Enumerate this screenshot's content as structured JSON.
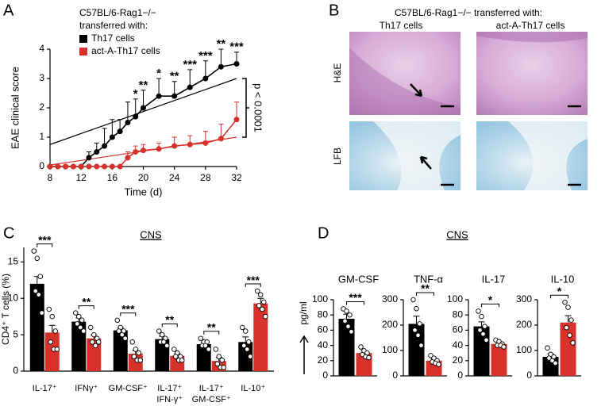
{
  "chart_data": [
    {
      "type": "line",
      "panel": "A",
      "legend_title": [
        "C57BL/6-Rag1−/−",
        "transferred with:"
      ],
      "xlabel": "Time (d)",
      "ylabel": "EAE clinical score",
      "x": [
        8,
        9,
        10,
        11,
        12,
        13,
        14,
        15,
        16,
        17,
        18,
        19,
        20,
        22,
        24,
        26,
        28,
        30,
        32
      ],
      "series": [
        {
          "name": "Th17 cells",
          "color": "#000000",
          "values": [
            0,
            0,
            0,
            0,
            0,
            0.3,
            0.5,
            0.7,
            1.0,
            1.2,
            1.5,
            1.7,
            2.0,
            2.4,
            2.4,
            2.7,
            3.0,
            3.4,
            3.5
          ],
          "errors": [
            0,
            0,
            0,
            0,
            0,
            0.2,
            0.3,
            0.6,
            0.6,
            0.4,
            0.7,
            0.6,
            0.6,
            0.6,
            0.5,
            0.6,
            0.6,
            0.6,
            0.4
          ],
          "fit": [
            0.75,
            3.0
          ]
        },
        {
          "name": "act-A-Th17 cells",
          "color": "#d6312b",
          "values": [
            0,
            0,
            0,
            0,
            0,
            0,
            0,
            0,
            0,
            0,
            0.3,
            0.5,
            0.55,
            0.6,
            0.7,
            0.75,
            0.8,
            0.95,
            1.6
          ],
          "errors": [
            0,
            0,
            0,
            0,
            0,
            0,
            0,
            0,
            0,
            0,
            0.2,
            0.2,
            0.2,
            0.2,
            0.3,
            0.3,
            0.4,
            0.5,
            0.6
          ],
          "fit": [
            0.05,
            1.0
          ]
        }
      ],
      "annotations": [
        {
          "x": 19,
          "text": "*"
        },
        {
          "x": 20,
          "text": "**"
        },
        {
          "x": 22,
          "text": "*"
        },
        {
          "x": 24,
          "text": "**"
        },
        {
          "x": 26,
          "text": "***"
        },
        {
          "x": 28,
          "text": "***"
        },
        {
          "x": 30,
          "text": "**"
        },
        {
          "x": 32,
          "text": "***"
        }
      ],
      "p_annotation": "p < 0.0001",
      "xlim": [
        8,
        32
      ],
      "xticks": [
        8,
        12,
        16,
        20,
        24,
        28,
        32
      ],
      "ylim": [
        0,
        4
      ],
      "yticks": [
        0,
        1,
        2,
        3,
        4
      ]
    },
    {
      "type": "bar",
      "panel": "C",
      "section_title": "CNS",
      "ylabel": "CD4⁺ T cells (%)",
      "categories": [
        "IL-17⁺",
        "IFNγ⁺",
        "GM-CSF⁺",
        [
          "IL-17⁺",
          "IFN-γ⁺"
        ],
        [
          "IL-17⁺",
          "GM-CSF⁺"
        ],
        "IL-10⁺"
      ],
      "series": [
        {
          "color": "#000000",
          "values": [
            12,
            6.8,
            5.6,
            4.4,
            3.7,
            4.0
          ],
          "errors": [
            1.0,
            0.5,
            0.4,
            0.4,
            0.3,
            0.7
          ],
          "points": [
            [
              16.5,
              15.5,
              13,
              11,
              10.5,
              8
            ],
            [
              8,
              7.5,
              7,
              6.5,
              6,
              5.5
            ],
            [
              7,
              6,
              5.5,
              5.5,
              5,
              4.5
            ],
            [
              5.5,
              5,
              4.5,
              4,
              4,
              3.5
            ],
            [
              4.5,
              4,
              4,
              3.5,
              3.5,
              3
            ],
            [
              6,
              5.5,
              4,
              3.5,
              3,
              2
            ]
          ]
        },
        {
          "color": "#d6312b",
          "values": [
            5.3,
            4.5,
            2.4,
            2.1,
            1.4,
            9.3
          ],
          "errors": [
            1.0,
            0.5,
            0.4,
            0.3,
            0.5,
            0.7
          ],
          "points": [
            [
              8.5,
              7.5,
              5.5,
              4,
              3,
              3
            ],
            [
              6,
              5,
              4.5,
              4,
              3.5,
              4
            ],
            [
              4,
              3,
              2.5,
              2,
              1.5,
              1.5
            ],
            [
              3,
              2.5,
              2,
              2,
              1.5,
              1.5
            ],
            [
              3,
              2,
              1.5,
              1,
              0.5,
              0.5
            ],
            [
              11,
              10.5,
              9.5,
              9,
              8.5,
              7.5
            ]
          ]
        }
      ],
      "significance": [
        "***",
        "**",
        "***",
        "**",
        "**",
        "***"
      ],
      "ylim": [
        0,
        17
      ],
      "yticks": [
        0,
        5,
        10,
        15
      ]
    },
    {
      "type": "bar",
      "panel": "D",
      "section_title": "CNS",
      "ylabel": "pg/ml",
      "title": "GM-CSF",
      "series": [
        {
          "color": "#000000",
          "values": [
            75
          ],
          "errors": [
            6
          ],
          "points": [
            [
              88,
              85,
              80,
              72,
              65,
              58
            ]
          ]
        },
        {
          "color": "#d6312b",
          "values": [
            30
          ],
          "errors": [
            3
          ],
          "points": [
            [
              38,
              33,
              30,
              28,
              25,
              24
            ]
          ]
        }
      ],
      "significance": [
        "***"
      ],
      "ylim": [
        0,
        100
      ],
      "yticks": [
        0,
        20,
        40,
        60,
        80,
        100
      ]
    },
    {
      "type": "bar",
      "title": "TNF-α",
      "series": [
        {
          "color": "#000000",
          "values": [
            205
          ],
          "errors": [
            30
          ],
          "points": [
            [
              300,
              265,
              205,
              180,
              160,
              120
            ]
          ]
        },
        {
          "color": "#d6312b",
          "values": [
            60
          ],
          "errors": [
            6
          ],
          "points": [
            [
              80,
              70,
              60,
              55,
              50,
              45
            ]
          ]
        }
      ],
      "significance": [
        "**"
      ],
      "ylim": [
        0,
        300
      ],
      "yticks": [
        0,
        100,
        200,
        300
      ]
    },
    {
      "type": "bar",
      "title": "IL-17",
      "series": [
        {
          "color": "#000000",
          "values": [
            65
          ],
          "errors": [
            6
          ],
          "points": [
            [
              85,
              78,
              65,
              60,
              55,
              47
            ]
          ]
        },
        {
          "color": "#d6312b",
          "values": [
            42
          ],
          "errors": [
            2
          ],
          "points": [
            [
              47,
              45,
              42,
              40,
              40,
              38
            ]
          ]
        }
      ],
      "significance": [
        "*"
      ],
      "ylim": [
        0,
        100
      ],
      "yticks": [
        0,
        20,
        40,
        60,
        80,
        100
      ]
    },
    {
      "type": "bar",
      "title": "IL-10",
      "series": [
        {
          "color": "#000000",
          "values": [
            75
          ],
          "errors": [
            12
          ],
          "points": [
            [
              110,
              85,
              75,
              70,
              60,
              50
            ]
          ]
        },
        {
          "color": "#d6312b",
          "values": [
            210
          ],
          "errors": [
            27
          ],
          "points": [
            [
              290,
              270,
              220,
              190,
              160,
              130
            ]
          ]
        }
      ],
      "significance": [
        "*"
      ],
      "ylim": [
        0,
        300
      ],
      "yticks": [
        0,
        100,
        200,
        300
      ]
    }
  ],
  "histology": {
    "panel": "B",
    "header": "C57BL/6-Rag1−/− transferred with:",
    "columns": [
      "Th17 cells",
      "act-A-Th17 cells"
    ],
    "rows": [
      "H&E",
      "LFB"
    ]
  }
}
